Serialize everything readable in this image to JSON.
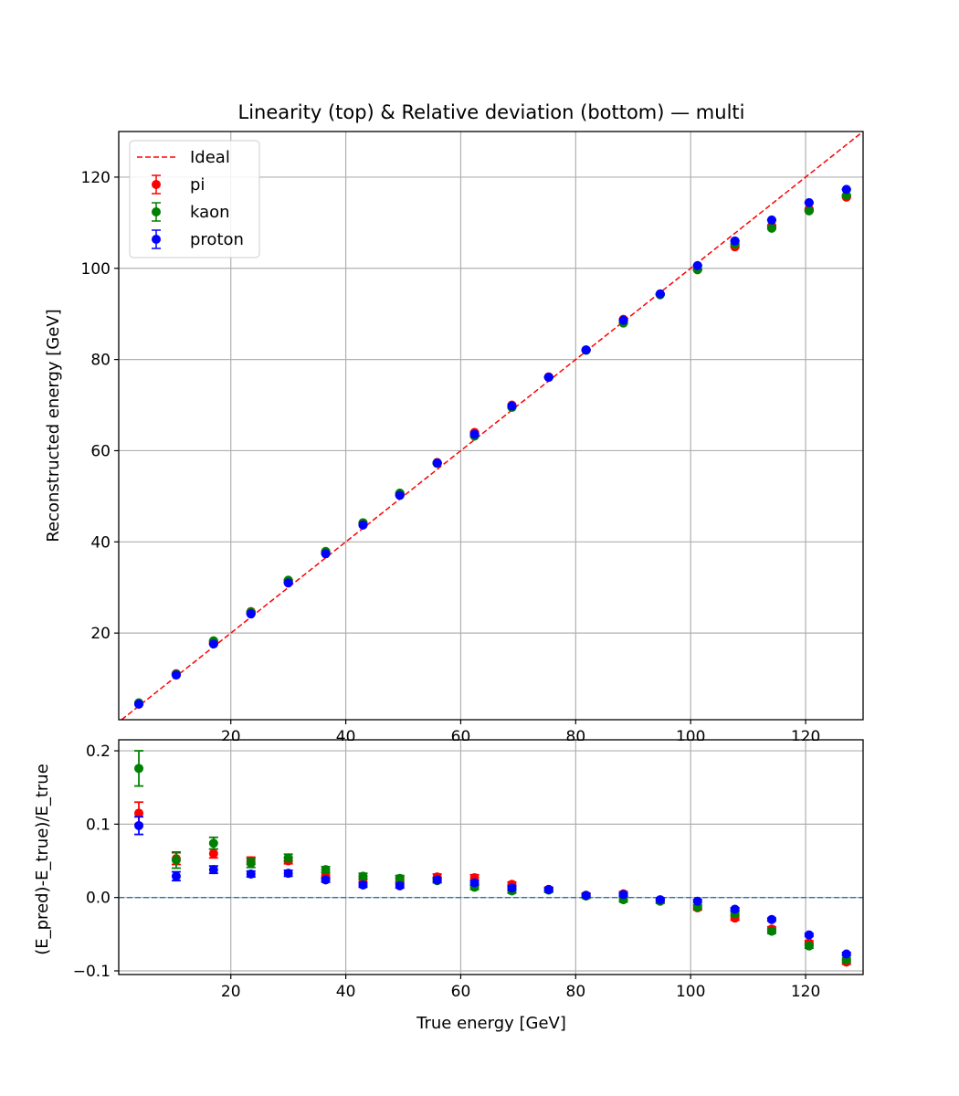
{
  "chart_data": [
    {
      "type": "scatter",
      "title": "Linearity (top) & Relative deviation (bottom) — multi",
      "xlabel": "",
      "ylabel": "Reconstructed energy [GeV]",
      "xlim": [
        0.5,
        130
      ],
      "ylim": [
        1,
        130
      ],
      "xticks": [
        20,
        40,
        60,
        80,
        100,
        120
      ],
      "yticks": [
        20,
        40,
        60,
        80,
        100,
        120
      ],
      "grid": true,
      "legend_position": "top-left",
      "x": [
        4.0,
        10.5,
        17.0,
        23.5,
        30.0,
        36.5,
        43.0,
        49.4,
        55.9,
        62.4,
        68.9,
        75.3,
        81.8,
        88.3,
        94.7,
        101.2,
        107.7,
        114.1,
        120.6,
        127.1
      ],
      "ideal_line": {
        "name": "Ideal",
        "color": "#ff0000",
        "style": "dashed"
      },
      "series": [
        {
          "name": "pi",
          "color": "#ff0000",
          "values": [
            4.46,
            11.1,
            18.0,
            24.7,
            31.5,
            37.6,
            44.0,
            50.6,
            57.4,
            64.0,
            70.0,
            76.2,
            82.1,
            88.8,
            94.3,
            99.7,
            104.7,
            109.3,
            113.0,
            115.6
          ],
          "errors": [
            0.06,
            0.08,
            0.08,
            0.08,
            0.08,
            0.08,
            0.08,
            0.08,
            0.08,
            0.08,
            0.08,
            0.08,
            0.08,
            0.08,
            0.08,
            0.08,
            0.1,
            0.1,
            0.1,
            0.1
          ]
        },
        {
          "name": "kaon",
          "color": "#008000",
          "values": [
            4.7,
            11.0,
            18.3,
            24.6,
            31.6,
            37.9,
            44.2,
            50.7,
            57.2,
            63.2,
            69.5,
            76.1,
            82.0,
            88.0,
            94.2,
            99.7,
            105.3,
            108.8,
            112.6,
            116.0
          ],
          "errors": [
            0.1,
            0.1,
            0.1,
            0.1,
            0.1,
            0.1,
            0.1,
            0.1,
            0.1,
            0.1,
            0.1,
            0.1,
            0.1,
            0.1,
            0.1,
            0.1,
            0.1,
            0.1,
            0.1,
            0.1
          ]
        },
        {
          "name": "proton",
          "color": "#0000ff",
          "values": [
            4.4,
            10.8,
            17.6,
            24.2,
            31.0,
            37.4,
            43.7,
            50.2,
            57.3,
            63.6,
            69.8,
            76.1,
            82.1,
            88.6,
            94.4,
            100.6,
            106.0,
            110.6,
            114.4,
            117.3
          ],
          "errors": [
            0.05,
            0.05,
            0.05,
            0.05,
            0.05,
            0.05,
            0.05,
            0.05,
            0.05,
            0.05,
            0.05,
            0.05,
            0.05,
            0.05,
            0.05,
            0.05,
            0.05,
            0.05,
            0.05,
            0.05
          ]
        }
      ]
    },
    {
      "type": "scatter",
      "title": "",
      "xlabel": "True energy [GeV]",
      "ylabel": "(E_pred)-E_true)/E_true",
      "xlim": [
        0.5,
        130
      ],
      "ylim": [
        -0.105,
        0.215
      ],
      "xticks": [
        20,
        40,
        60,
        80,
        100,
        120
      ],
      "yticks": [
        -0.1,
        0.0,
        0.1,
        0.2
      ],
      "ytick_labels": [
        "−0.1",
        "0.0",
        "0.1",
        "0.2"
      ],
      "grid": true,
      "reference_line": {
        "y": 0.0,
        "color": "#1f77b4",
        "style": "dashed"
      },
      "x": [
        4.0,
        10.5,
        17.0,
        23.5,
        30.0,
        36.5,
        43.0,
        49.4,
        55.9,
        62.4,
        68.9,
        75.3,
        81.8,
        88.3,
        94.7,
        101.2,
        107.7,
        114.1,
        120.6,
        127.1
      ],
      "series": [
        {
          "name": "pi",
          "color": "#ff0000",
          "values": [
            0.115,
            0.053,
            0.06,
            0.05,
            0.05,
            0.03,
            0.025,
            0.025,
            0.028,
            0.027,
            0.018,
            0.011,
            0.003,
            0.005,
            -0.004,
            -0.014,
            -0.028,
            -0.043,
            -0.062,
            -0.088
          ],
          "errors": [
            0.015,
            0.008,
            0.006,
            0.005,
            0.004,
            0.004,
            0.004,
            0.004,
            0.004,
            0.004,
            0.003,
            0.003,
            0.003,
            0.003,
            0.003,
            0.003,
            0.003,
            0.003,
            0.003,
            0.003
          ]
        },
        {
          "name": "kaon",
          "color": "#008000",
          "values": [
            0.176,
            0.051,
            0.074,
            0.047,
            0.054,
            0.038,
            0.029,
            0.026,
            0.023,
            0.014,
            0.009,
            0.01,
            0.002,
            -0.003,
            -0.005,
            -0.013,
            -0.022,
            -0.046,
            -0.066,
            -0.085
          ],
          "errors": [
            0.024,
            0.011,
            0.008,
            0.006,
            0.005,
            0.004,
            0.004,
            0.004,
            0.003,
            0.003,
            0.003,
            0.003,
            0.003,
            0.003,
            0.003,
            0.003,
            0.003,
            0.003,
            0.003,
            0.003
          ]
        },
        {
          "name": "proton",
          "color": "#0000ff",
          "values": [
            0.098,
            0.029,
            0.038,
            0.032,
            0.033,
            0.024,
            0.017,
            0.016,
            0.024,
            0.02,
            0.013,
            0.011,
            0.003,
            0.004,
            -0.003,
            -0.005,
            -0.016,
            -0.03,
            -0.051,
            -0.077
          ],
          "errors": [
            0.012,
            0.006,
            0.005,
            0.004,
            0.004,
            0.003,
            0.003,
            0.003,
            0.003,
            0.003,
            0.003,
            0.002,
            0.002,
            0.002,
            0.002,
            0.002,
            0.002,
            0.002,
            0.002,
            0.002
          ]
        }
      ]
    }
  ]
}
